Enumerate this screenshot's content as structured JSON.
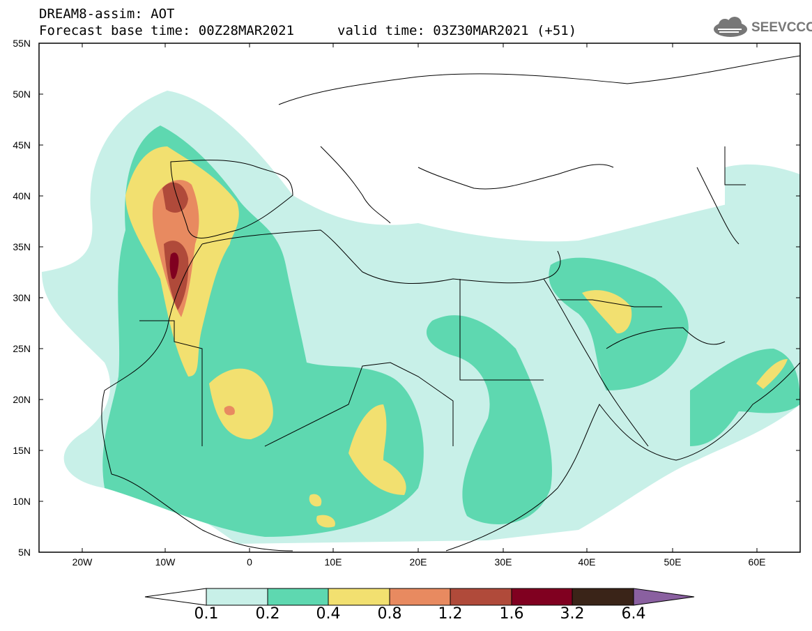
{
  "header": {
    "title_line1": "DREAM8-assim: AOT",
    "title_line2": "Forecast base time: 00Z28MAR2021",
    "valid_time": "valid time: 03Z30MAR2021 (+51)",
    "logo_text": "SEEVCCC"
  },
  "map": {
    "lat_labels": [
      "55N",
      "50N",
      "45N",
      "40N",
      "35N",
      "30N",
      "25N",
      "20N",
      "15N",
      "10N",
      "5N"
    ],
    "lon_labels": [
      "20W",
      "10W",
      "0",
      "10E",
      "20E",
      "30E",
      "40E",
      "50E",
      "60E"
    ]
  },
  "colorbar": {
    "levels": [
      "0.1",
      "0.2",
      "0.4",
      "0.8",
      "1.2",
      "1.6",
      "3.2",
      "6.4"
    ],
    "colors": [
      "#ffffff",
      "#c8f0e8",
      "#5ed8b0",
      "#f2e070",
      "#e88a60",
      "#b04a3a",
      "#800020",
      "#3a2418",
      "#8a60a0"
    ]
  }
}
